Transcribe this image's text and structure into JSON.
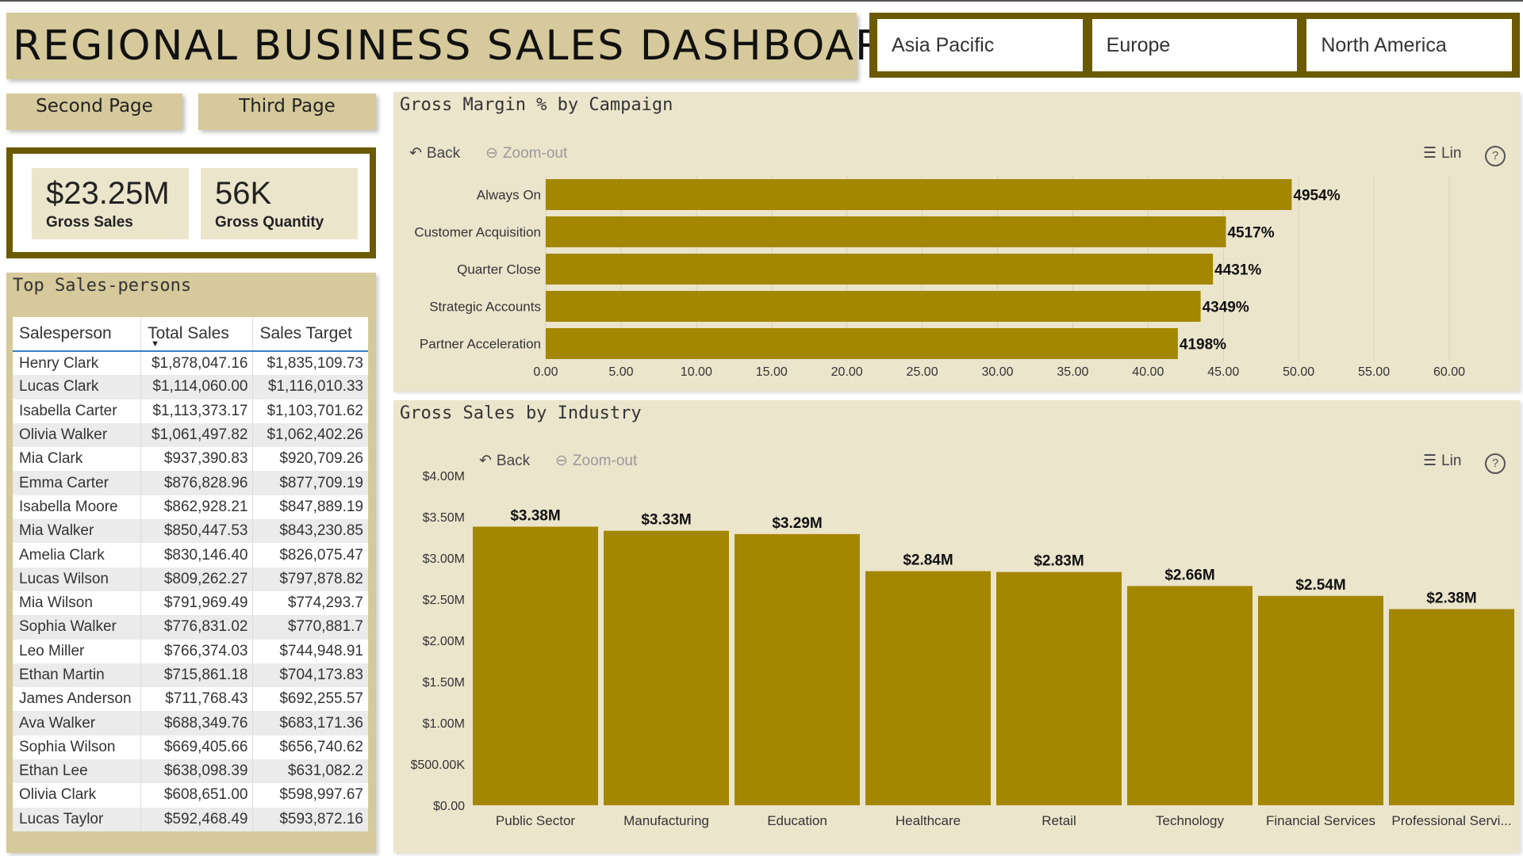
{
  "title": "REGIONAL BUSINESS SALES DASHBOARD",
  "slicer": {
    "options": [
      "Asia Pacific",
      "Europe",
      "North America"
    ]
  },
  "nav": {
    "second": "Second Page",
    "third": "Third Page"
  },
  "kpis": {
    "gross_sales": {
      "value": "$23.25M",
      "label": "Gross Sales"
    },
    "gross_quantity": {
      "value": "56K",
      "label": "Gross Quantity"
    }
  },
  "colors": {
    "bar": "#a48700",
    "panel": "#ebe5cc",
    "header": "#d6c99b",
    "frame": "#6b5a00"
  },
  "toolbar": {
    "back": "Back",
    "zoom_out": "Zoom-out",
    "legend": "Lin",
    "help": "?"
  },
  "table": {
    "title": "Top Sales-persons",
    "columns": [
      "Salesperson",
      "Total Sales",
      "Sales Target"
    ],
    "rows": [
      [
        "Henry Clark",
        "$1,878,047.16",
        "$1,835,109.73"
      ],
      [
        "Lucas Clark",
        "$1,114,060.00",
        "$1,116,010.33"
      ],
      [
        "Isabella Carter",
        "$1,113,373.17",
        "$1,103,701.62"
      ],
      [
        "Olivia Walker",
        "$1,061,497.82",
        "$1,062,402.26"
      ],
      [
        "Mia Clark",
        "$937,390.83",
        "$920,709.26"
      ],
      [
        "Emma Carter",
        "$876,828.96",
        "$877,709.19"
      ],
      [
        "Isabella Moore",
        "$862,928.21",
        "$847,889.19"
      ],
      [
        "Mia Walker",
        "$850,447.53",
        "$843,230.85"
      ],
      [
        "Amelia Clark",
        "$830,146.40",
        "$826,075.47"
      ],
      [
        "Lucas Wilson",
        "$809,262.27",
        "$797,878.82"
      ],
      [
        "Mia Wilson",
        "$791,969.49",
        "$774,293.7"
      ],
      [
        "Sophia Walker",
        "$776,831.02",
        "$770,881.7"
      ],
      [
        "Leo Miller",
        "$766,374.03",
        "$744,948.91"
      ],
      [
        "Ethan Martin",
        "$715,861.18",
        "$704,173.83"
      ],
      [
        "James Anderson",
        "$711,768.43",
        "$692,255.57"
      ],
      [
        "Ava Walker",
        "$688,349.76",
        "$683,171.36"
      ],
      [
        "Sophia Wilson",
        "$669,405.66",
        "$656,740.62"
      ],
      [
        "Ethan Lee",
        "$638,098.39",
        "$631,082.2"
      ],
      [
        "Olivia Clark",
        "$608,651.00",
        "$598,997.67"
      ],
      [
        "Lucas Taylor",
        "$592,468.49",
        "$593,872.16"
      ]
    ]
  },
  "chart_data": [
    {
      "type": "bar",
      "orientation": "horizontal",
      "title": "Gross Margin % by Campaign",
      "categories": [
        "Always On",
        "Customer Acquisition",
        "Quarter Close",
        "Strategic Accounts",
        "Partner Acceleration"
      ],
      "values": [
        49.54,
        45.17,
        44.31,
        43.49,
        41.98
      ],
      "data_labels": [
        "4954%",
        "4517%",
        "4431%",
        "4349%",
        "4198%"
      ],
      "xlim": [
        0,
        60
      ],
      "xticks": [
        "0.00",
        "5.00",
        "10.00",
        "15.00",
        "20.00",
        "25.00",
        "30.00",
        "35.00",
        "40.00",
        "45.00",
        "50.00",
        "55.00",
        "60.00"
      ],
      "grid": true
    },
    {
      "type": "bar",
      "title": "Gross Sales by Industry",
      "categories": [
        "Public Sector",
        "Manufacturing",
        "Education",
        "Healthcare",
        "Retail",
        "Technology",
        "Financial Services",
        "Professional Servi..."
      ],
      "values": [
        3.38,
        3.33,
        3.29,
        2.84,
        2.83,
        2.66,
        2.54,
        2.38
      ],
      "data_labels": [
        "$3.38M",
        "$3.33M",
        "$3.29M",
        "$2.84M",
        "$2.83M",
        "$2.66M",
        "$2.54M",
        "$2.38M"
      ],
      "ylim": [
        0,
        4
      ],
      "yticks": [
        "$0.00",
        "$500.00K",
        "$1.00M",
        "$1.50M",
        "$2.00M",
        "$2.50M",
        "$3.00M",
        "$3.50M",
        "$4.00M"
      ],
      "grid": false
    }
  ]
}
